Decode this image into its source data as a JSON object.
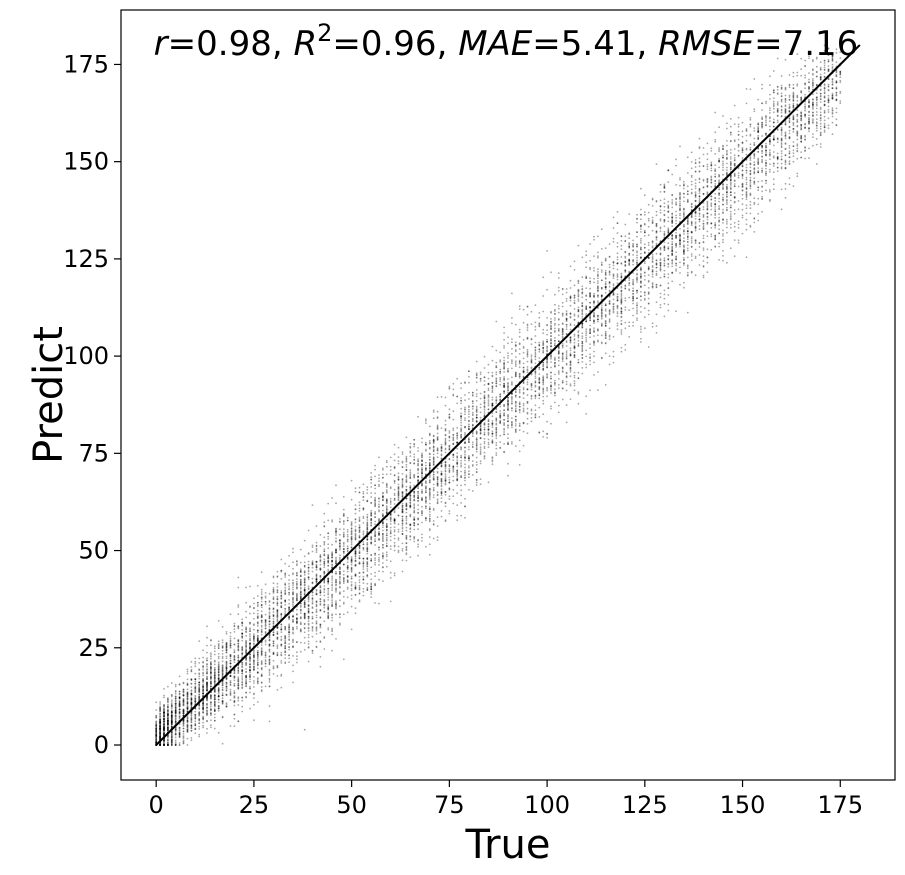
{
  "chart_data": {
    "type": "scatter",
    "title": "",
    "xlabel": "True",
    "ylabel": "Predict",
    "xlim": [
      -9,
      189
    ],
    "ylim": [
      -9,
      189
    ],
    "xticks": [
      0,
      25,
      50,
      75,
      100,
      125,
      150,
      175
    ],
    "yticks": [
      0,
      25,
      50,
      75,
      100,
      125,
      150,
      175
    ],
    "xtick_labels": [
      "0",
      "25",
      "50",
      "75",
      "100",
      "125",
      "150",
      "175"
    ],
    "ytick_labels": [
      "0",
      "25",
      "50",
      "75",
      "100",
      "125",
      "150",
      "175"
    ],
    "grid": false,
    "legend": "none",
    "point_color": "#000000",
    "annotation": {
      "r_symbol": "r",
      "r_value": "=0.98, ",
      "r2_symbol": "R",
      "r2_sup": "2",
      "r2_value": "=0.96, ",
      "mae_symbol": "MAE",
      "mae_value": "=5.41, ",
      "rmse_symbol": "RMSE",
      "rmse_value": "=7.16"
    },
    "identity_line": {
      "x": [
        0,
        180
      ],
      "y": [
        0,
        180
      ]
    },
    "density_profile": {
      "description_of_cloud": "points concentrated around y=x with spread widening at higher values",
      "true_range": [
        0,
        175
      ],
      "predict_range": [
        0,
        175
      ],
      "center_trend": [
        [
          0,
          2
        ],
        [
          25,
          25
        ],
        [
          50,
          48
        ],
        [
          75,
          74
        ],
        [
          100,
          100
        ],
        [
          125,
          124
        ],
        [
          150,
          148
        ],
        [
          175,
          172
        ]
      ],
      "spread_trend": [
        [
          0,
          6
        ],
        [
          25,
          12
        ],
        [
          50,
          13
        ],
        [
          75,
          13
        ],
        [
          100,
          13
        ],
        [
          125,
          14
        ],
        [
          150,
          14
        ],
        [
          175,
          10
        ]
      ]
    }
  }
}
